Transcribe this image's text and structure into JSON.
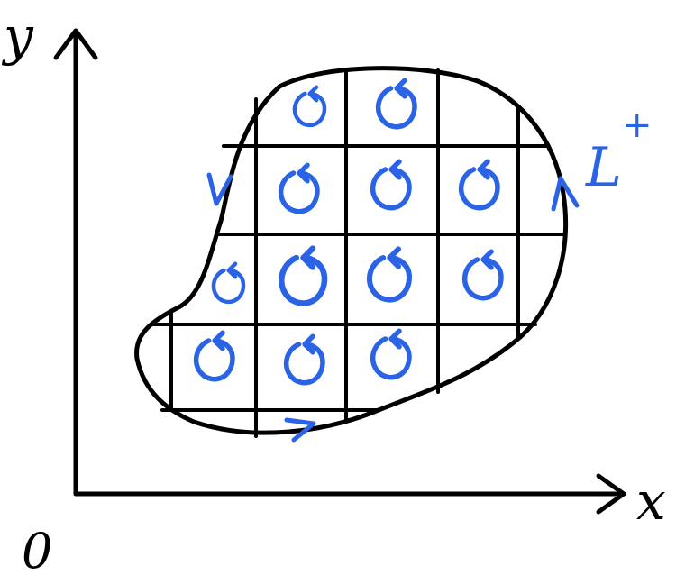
{
  "labels": {
    "y_axis": "y",
    "x_axis": "x",
    "origin": "0",
    "curve": "L",
    "curve_sup": "+"
  },
  "colors": {
    "ink": "#000000",
    "accent": "#2b63e6"
  },
  "grid": {
    "rows": 4,
    "columns": 4
  }
}
